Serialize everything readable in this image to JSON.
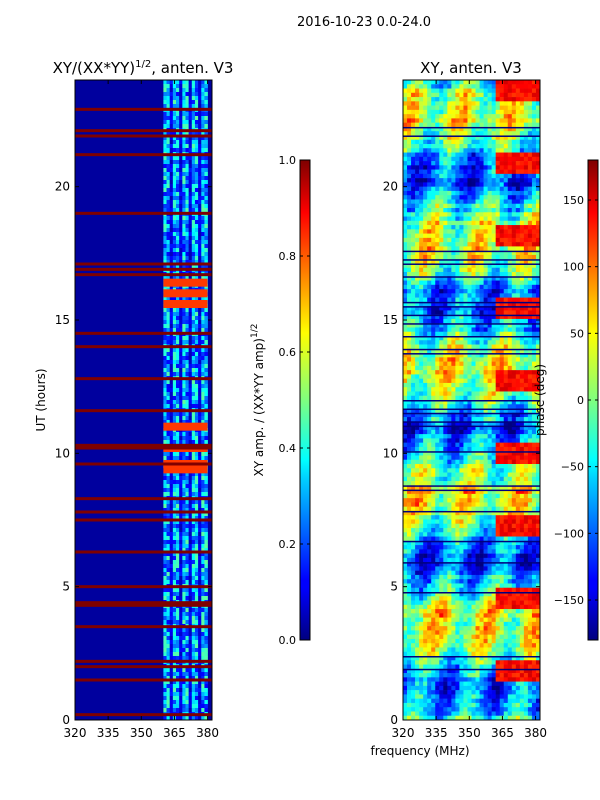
{
  "suptitle": "2016-10-23 0.0-24.0",
  "chart_data": [
    {
      "type": "heatmap",
      "title_main": "XY/(XX*YY)",
      "title_sup": "1/2",
      "title_tail": ", anten. V3",
      "xlabel": "",
      "ylabel": "UT (hours)",
      "xlim": [
        320,
        382
      ],
      "ylim": [
        0,
        24
      ],
      "xticks": [
        320,
        335,
        350,
        365,
        380
      ],
      "yticks": [
        0,
        5,
        10,
        15,
        20
      ],
      "colormap": "jet",
      "data_band_mhz": [
        360,
        380
      ],
      "flagged_hours_full_band": [
        0.2,
        1.5,
        2.0,
        2.2,
        3.5,
        4.3,
        4.4,
        5.0,
        6.3,
        7.5,
        7.8,
        8.3,
        9.6,
        10.2,
        10.3,
        11.6,
        12.8,
        14.0,
        14.5,
        16.7,
        16.9,
        17.1,
        19.0,
        21.2,
        21.9,
        22.1,
        22.9
      ],
      "high_amplitude_hours": [
        9.4,
        9.6,
        10.2,
        11.0,
        15.6,
        16.0,
        16.4
      ],
      "colorbar": {
        "label_main": "XY amp. / (XX*YY amp)",
        "label_sup": "1/2",
        "vmin": 0.0,
        "vmax": 1.0,
        "ticks": [
          "0.0",
          "0.2",
          "0.4",
          "0.6",
          "0.8",
          "1.0"
        ]
      }
    },
    {
      "type": "heatmap",
      "title": "XY, anten. V3",
      "xlabel": "frequency (MHz)",
      "ylabel": "",
      "xlim": [
        320,
        382
      ],
      "ylim": [
        0,
        24
      ],
      "xticks": [
        320,
        335,
        350,
        365,
        380
      ],
      "yticks": [
        0,
        5,
        10,
        15,
        20
      ],
      "colormap": "jet",
      "colorbar": {
        "label": "phase (deg)",
        "vmin": -180,
        "vmax": 180,
        "ticks": [
          "150",
          "100",
          "50",
          "0",
          "−50",
          "−100",
          "−150"
        ],
        "tick_values": [
          150,
          100,
          50,
          0,
          -50,
          -100,
          -150
        ]
      }
    }
  ]
}
